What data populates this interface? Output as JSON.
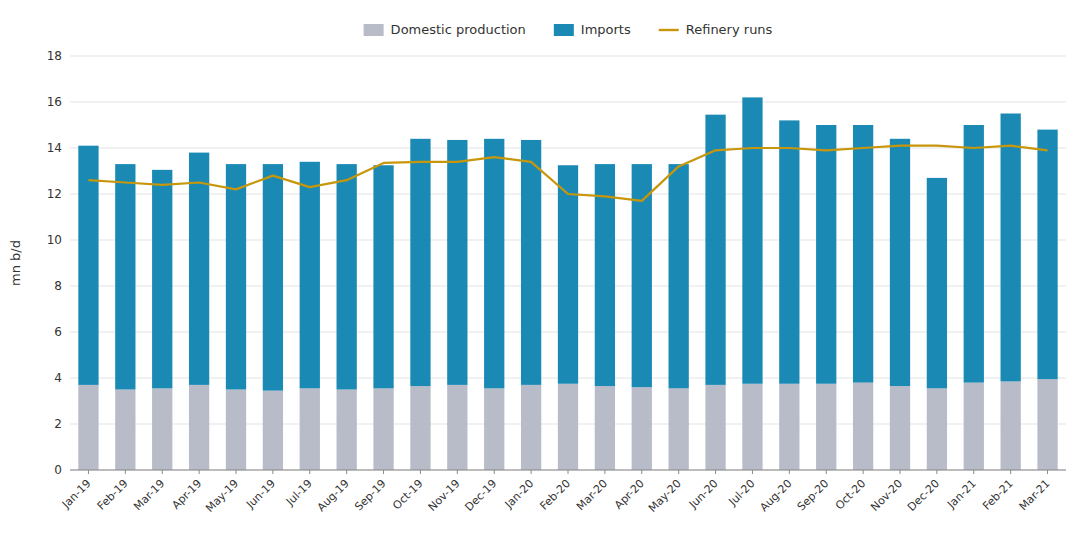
{
  "chart_data": {
    "type": "bar",
    "stacked": true,
    "grid": true,
    "legend": "top",
    "ylabel": "mn b/d",
    "categories": [
      "Jan-19",
      "Feb-19",
      "Mar-19",
      "Apr-19",
      "May-19",
      "Jun-19",
      "Jul-19",
      "Aug-19",
      "Sep-19",
      "Oct-19",
      "Nov-19",
      "Dec-19",
      "Jan-20",
      "Feb-20",
      "Mar-20",
      "Apr-20",
      "May-20",
      "Jun-20",
      "Jul-20",
      "Aug-20",
      "Sep-20",
      "Oct-20",
      "Nov-20",
      "Dec-20",
      "Jan-21",
      "Feb-21",
      "Mar-21"
    ],
    "series": [
      {
        "name": "Domestic production",
        "type": "bar",
        "color": "#b8bcc8",
        "values": [
          3.7,
          3.5,
          3.55,
          3.7,
          3.5,
          3.45,
          3.55,
          3.5,
          3.55,
          3.65,
          3.7,
          3.55,
          3.7,
          3.75,
          3.65,
          3.6,
          3.55,
          3.7,
          3.75,
          3.75,
          3.75,
          3.8,
          3.65,
          3.55,
          3.8,
          3.85,
          3.95
        ]
      },
      {
        "name": "Imports",
        "type": "bar",
        "color": "#1a8ab5",
        "values": [
          10.4,
          9.8,
          9.5,
          10.1,
          9.8,
          9.85,
          9.85,
          9.8,
          9.7,
          10.75,
          10.65,
          10.85,
          10.65,
          9.5,
          9.65,
          9.7,
          9.75,
          11.75,
          12.45,
          11.45,
          11.25,
          11.2,
          10.75,
          9.15,
          11.2,
          11.65,
          10.85
        ]
      },
      {
        "name": "Refinery runs",
        "type": "line",
        "color": "#c8960a",
        "values": [
          12.6,
          12.5,
          12.4,
          12.5,
          12.2,
          12.8,
          12.3,
          12.6,
          13.35,
          13.4,
          13.4,
          13.6,
          13.4,
          12.0,
          11.9,
          11.7,
          13.2,
          13.9,
          14.0,
          14.0,
          13.9,
          14.0,
          14.1,
          14.1,
          14.0,
          14.1,
          13.9
        ]
      }
    ],
    "ylim": [
      0,
      18
    ],
    "yticks": [
      0,
      2,
      4,
      6,
      8,
      10,
      12,
      14,
      16,
      18
    ]
  }
}
